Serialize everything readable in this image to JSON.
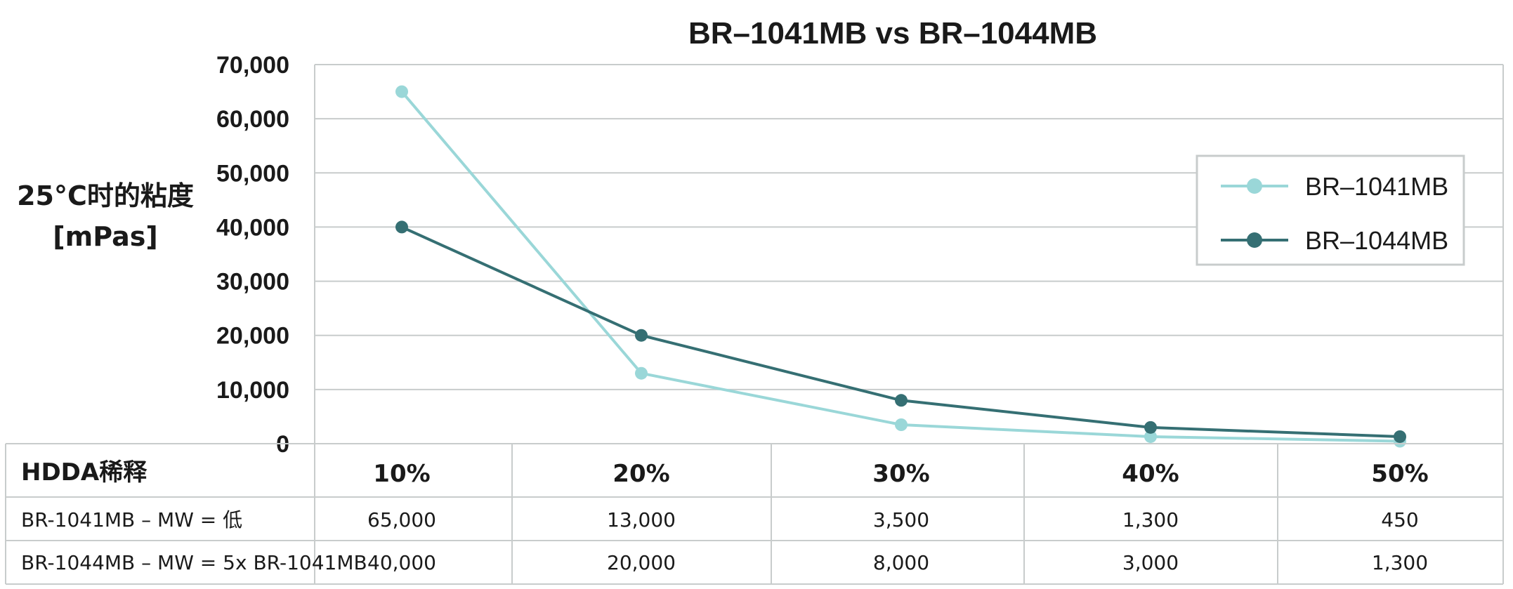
{
  "chart_data": {
    "type": "line",
    "title": "BR–1041MB vs BR–1044MB",
    "ylabel_lines": [
      "25°C时的粘度",
      "[mPas]"
    ],
    "ylim": [
      0,
      70000
    ],
    "yticks": [
      "70,000",
      "60,000",
      "50,000",
      "40,000",
      "30,000",
      "20,000",
      "10,000",
      "0"
    ],
    "ytick_values": [
      70000,
      60000,
      50000,
      40000,
      30000,
      20000,
      10000,
      0
    ],
    "grid": true,
    "legend_position": "top-right",
    "categories": [
      "10%",
      "20%",
      "30%",
      "40%",
      "50%"
    ],
    "series": [
      {
        "name": "BR–1041MB",
        "color": "#9ad7d8",
        "values": [
          65000,
          13000,
          3500,
          1300,
          450
        ]
      },
      {
        "name": "BR–1044MB",
        "color": "#356f73",
        "values": [
          40000,
          20000,
          8000,
          3000,
          1300
        ]
      }
    ]
  },
  "table": {
    "header_label": "HDDA稀释",
    "columns": [
      "10%",
      "20%",
      "30%",
      "40%",
      "50%"
    ],
    "rows": [
      {
        "label": "BR-1041MB – MW = 低",
        "cells": [
          "65,000",
          "13,000",
          "3,500",
          "1,300",
          "450"
        ]
      },
      {
        "label": "BR-1044MB – MW = 5x BR-1041MB",
        "cells": [
          "40,000",
          "20,000",
          "8,000",
          "3,000",
          "1,300"
        ]
      }
    ]
  },
  "colors": {
    "grid": "#c8cccc",
    "table_border": "#c8cccc"
  }
}
